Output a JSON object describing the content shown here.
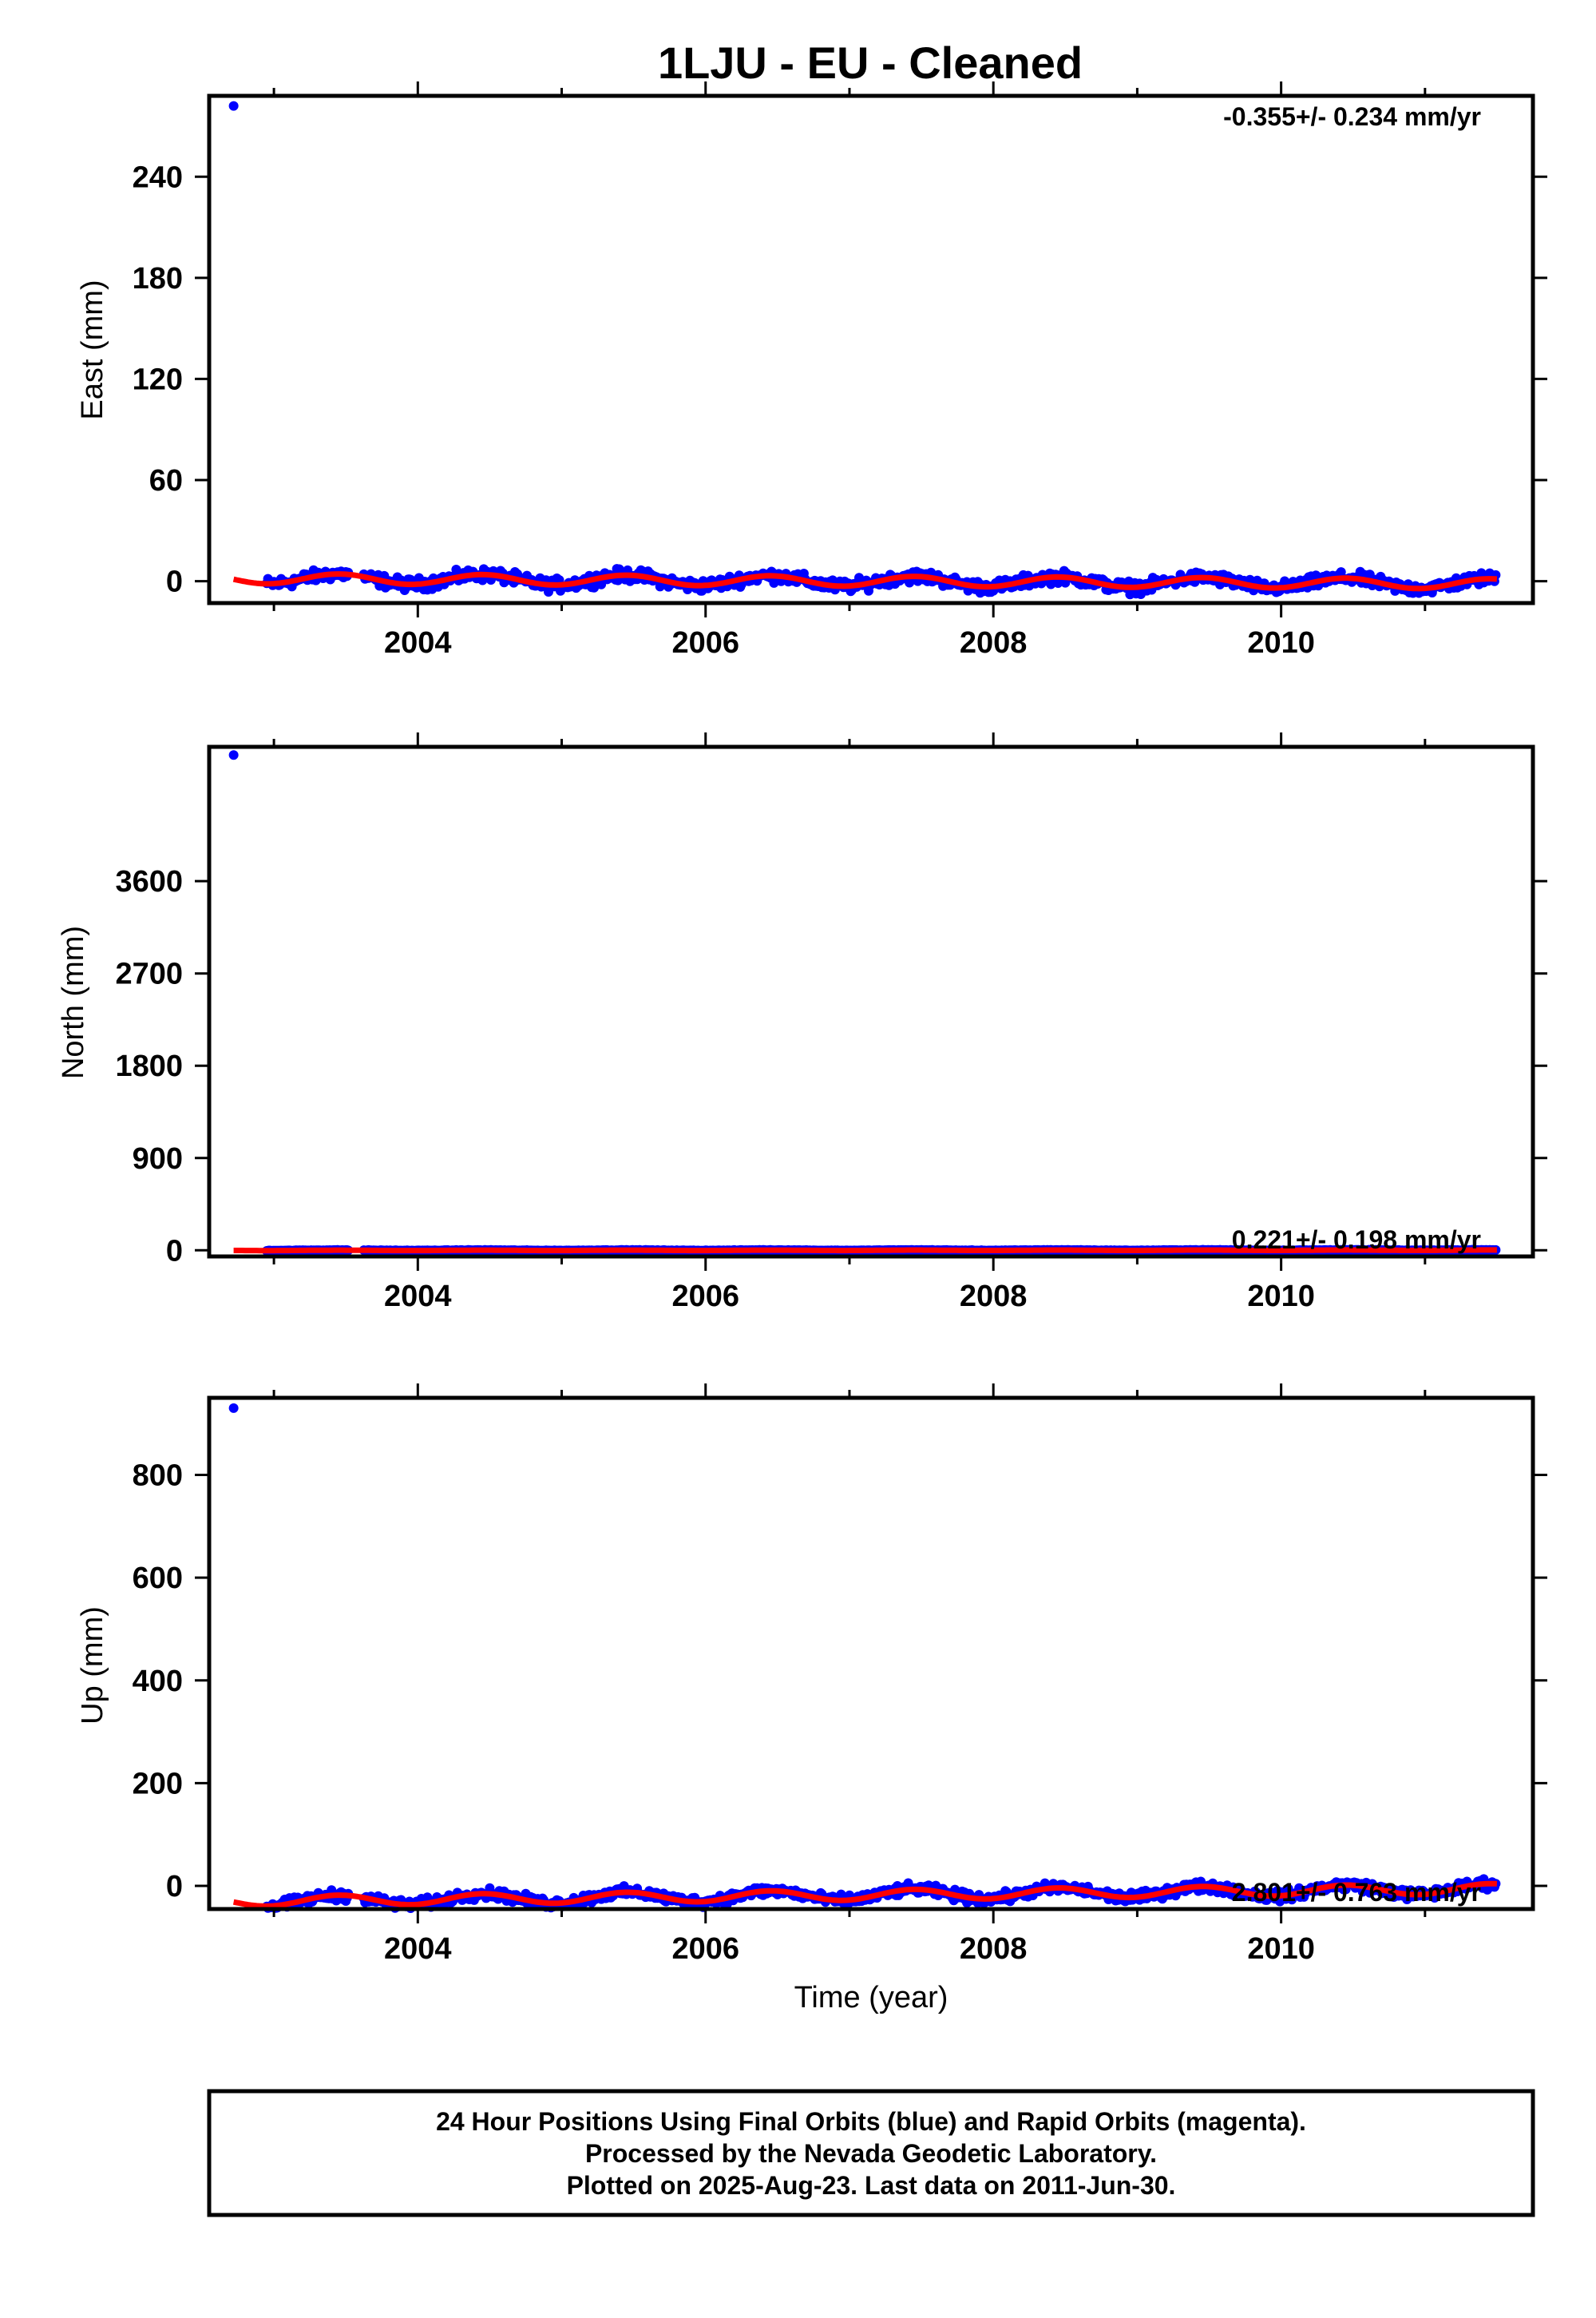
{
  "title": "1LJU  - EU - Cleaned",
  "xlabel": "Time (year)",
  "footer": {
    "line1": "24 Hour Positions Using Final Orbits (blue) and Rapid Orbits (magenta).",
    "line2": "Processed by the Nevada Geodetic Laboratory.",
    "line3": "Plotted on 2025-Aug-23. Last data on 2011-Jun-30."
  },
  "colors": {
    "data": "#0000ff",
    "model": "#ff0000",
    "frame": "#000000"
  },
  "chart_data": [
    {
      "type": "scatter",
      "ylabel": "East (mm)",
      "rate_text": "-0.355+/- 0.234 mm/yr",
      "xlim": [
        2002.55,
        2011.75
      ],
      "ylim": [
        -13,
        288
      ],
      "xticks": [
        2004,
        2006,
        2008,
        2010
      ],
      "yticks": [
        0,
        60,
        120,
        180,
        240
      ],
      "outlier": {
        "x": 2002.72,
        "y": 282
      },
      "series": [
        {
          "name": "Final Orbits",
          "points": "daily positions, 2002.95–2011.50",
          "seasonal_amplitude": 3,
          "offset": 0,
          "trend": -0.355,
          "noise": 2.5
        }
      ],
      "model": {
        "start": 2002.72,
        "end": 2011.5,
        "seasonal_amplitude": 3,
        "offset": 0,
        "trend": -0.355
      }
    },
    {
      "type": "scatter",
      "ylabel": "North (mm)",
      "rate_text": "0.221+/- 0.198 mm/yr",
      "xlim": [
        2002.55,
        2011.75
      ],
      "ylim": [
        -60,
        4910
      ],
      "xticks": [
        2004,
        2006,
        2008,
        2010
      ],
      "yticks": [
        0,
        900,
        1800,
        2700,
        3600
      ],
      "outlier": {
        "x": 2002.72,
        "y": 4830
      },
      "series": [
        {
          "name": "Final Orbits",
          "points": "daily positions, 2002.95–2011.50",
          "seasonal_amplitude": 2,
          "offset": 0,
          "trend": 0.221,
          "noise": 2
        }
      ],
      "model": {
        "start": 2002.72,
        "end": 2011.5,
        "seasonal_amplitude": 2,
        "offset": 0,
        "trend": 0.221
      }
    },
    {
      "type": "scatter",
      "ylabel": "Up (mm)",
      "rate_text": "2.801+/- 0.763 mm/yr",
      "xlim": [
        2002.55,
        2011.75
      ],
      "ylim": [
        -45,
        950
      ],
      "xticks": [
        2004,
        2006,
        2008,
        2010
      ],
      "yticks": [
        0,
        200,
        400,
        600,
        800
      ],
      "outlier": {
        "x": 2002.72,
        "y": 930
      },
      "series": [
        {
          "name": "Final Orbits",
          "points": "daily positions, 2002.95–2011.50",
          "seasonal_amplitude": 10,
          "offset": -18,
          "trend": 2.801,
          "noise": 7
        }
      ],
      "model": {
        "start": 2002.72,
        "end": 2011.5,
        "seasonal_amplitude": 10,
        "offset": -18,
        "trend": 2.801
      }
    }
  ]
}
